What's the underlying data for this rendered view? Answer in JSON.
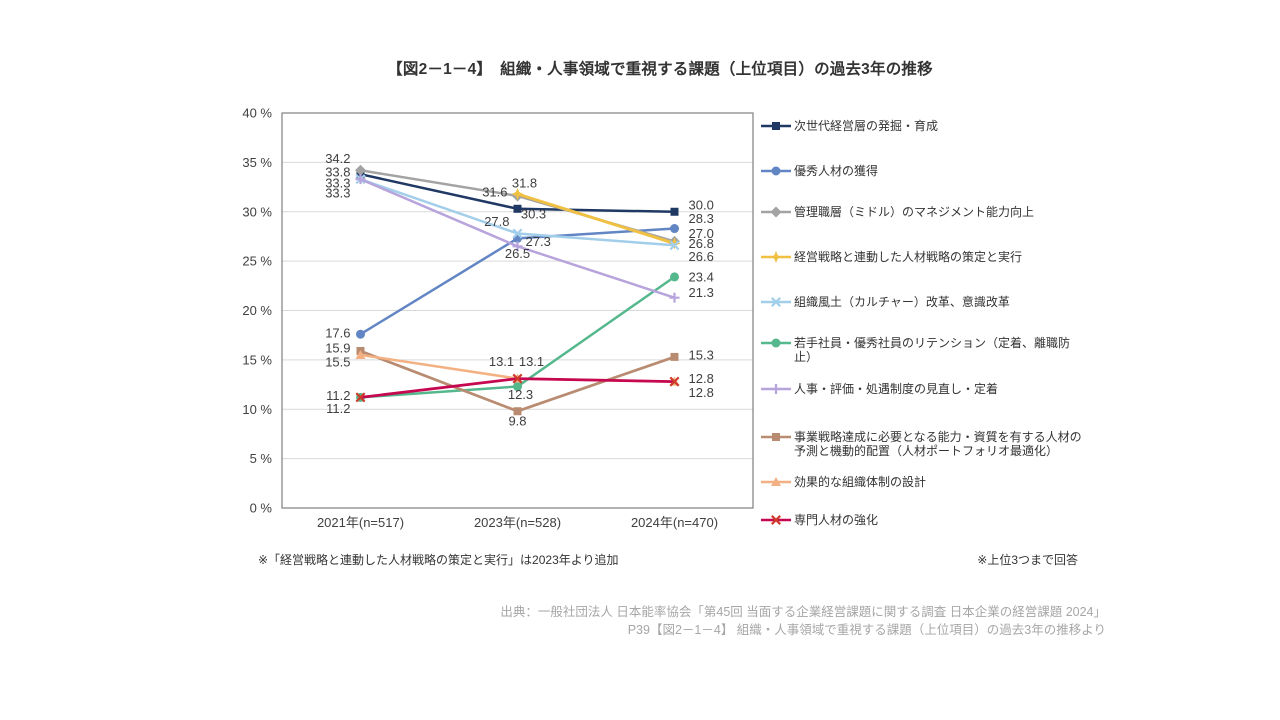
{
  "title": "【図2－1－4】　組織・人事領域で重視する課題（上位項目）の過去3年の推移",
  "footnotes": {
    "left": "※「経営戦略と連動した人材戦略の策定と実行」は2023年より追加",
    "right": "※上位3つまで回答"
  },
  "source": {
    "line1": "出典：一般社団法人 日本能率協会「第45回 当面する企業経営課題に関する調査 日本企業の経営課題 2024」",
    "line2": "P39【図2－1－4】 組織・人事領域で重視する課題（上位項目）の過去3年の推移より"
  },
  "chart_data": {
    "type": "line",
    "title": "組織・人事領域で重視する課題（上位項目）の過去3年の推移",
    "categories": [
      "2021年(n=517)",
      "2023年(n=528)",
      "2024年(n=470)"
    ],
    "ylim": [
      0,
      40
    ],
    "ytick_step": 5,
    "ytick_suffix": " %",
    "grid": true,
    "legend_position": "right",
    "axis_color": "#7f7f7f",
    "grid_color": "#d9d9d9",
    "label_color": "#3f3f3f",
    "series": [
      {
        "name": "次世代経営層の発掘・育成",
        "color": "#1F3864",
        "marker": "square",
        "width": 2.5,
        "values": [
          33.8,
          30.3,
          30.0
        ],
        "label_offsets": [
          [
            -10,
            -2,
            "end"
          ],
          [
            16,
            5,
            "middle"
          ],
          [
            14,
            -7,
            "start"
          ]
        ]
      },
      {
        "name": "優秀人材の獲得",
        "color": "#6285C4",
        "marker": "circle",
        "width": 2.5,
        "values": [
          17.6,
          27.3,
          28.3
        ],
        "label_offsets": [
          [
            -10,
            -1,
            "end"
          ],
          [
            8,
            3,
            "start"
          ],
          [
            14,
            -10,
            "start"
          ]
        ]
      },
      {
        "name": "管理職層（ミドル）のマネジメント能力向上",
        "color": "#A3A3A3",
        "marker": "diamond",
        "width": 2.5,
        "values": [
          34.2,
          31.6,
          27.0
        ],
        "label_offsets": [
          [
            -10,
            -12,
            "end"
          ],
          [
            -10,
            -4,
            "end"
          ],
          [
            14,
            -8,
            "start"
          ]
        ]
      },
      {
        "name": "経営戦略と連動した人材戦略の策定と実行",
        "color": "#EFC042",
        "marker": "star4",
        "width": 3,
        "values": [
          null,
          31.8,
          26.8
        ],
        "label_offsets": [
          null,
          [
            7,
            -11,
            "middle"
          ],
          [
            14,
            0,
            "start"
          ]
        ]
      },
      {
        "name": "組織風土（カルチャー）改革、意識改革",
        "color": "#A3CEEA",
        "marker": "x",
        "width": 2.5,
        "values": [
          33.3,
          27.8,
          26.6
        ],
        "label_offsets": [
          [
            -10,
            4,
            "end"
          ],
          [
            -8,
            -12,
            "end"
          ],
          [
            14,
            11,
            "start"
          ]
        ]
      },
      {
        "name": "若手社員・優秀社員のリテンション（定着、離職防止）",
        "color": "#55B78C",
        "marker": "circle",
        "width": 2.5,
        "values": [
          11.2,
          12.3,
          23.4
        ],
        "label_offsets": [
          [
            -10,
            11,
            "end"
          ],
          [
            3,
            8,
            "middle"
          ],
          [
            14,
            0,
            "start"
          ]
        ]
      },
      {
        "name": "人事・評価・処遇制度の見直し・定着",
        "color": "#B7A4DC",
        "marker": "plus",
        "width": 2.5,
        "values": [
          33.3,
          26.5,
          21.3
        ],
        "label_offsets": [
          [
            -10,
            14,
            "end"
          ],
          [
            0,
            7,
            "middle"
          ],
          [
            14,
            -5,
            "start"
          ]
        ]
      },
      {
        "name": "事業戦略達成に必要となる能力・資質を有する人材の予測と機動的配置（人材ポートフォリオ最適化）",
        "color": "#B98C72",
        "marker": "square",
        "width": 2.75,
        "values": [
          15.9,
          9.8,
          15.3
        ],
        "label_offsets": [
          [
            -10,
            -3,
            "end"
          ],
          [
            0,
            10,
            "middle"
          ],
          [
            14,
            -2,
            "start"
          ]
        ]
      },
      {
        "name": "効果的な組織体制の設計",
        "color": "#F3B183",
        "marker": "triangle",
        "width": 2.5,
        "values": [
          15.5,
          13.1,
          12.8
        ],
        "label_offsets": [
          [
            -10,
            7,
            "end"
          ],
          [
            14,
            -17,
            "middle"
          ],
          [
            14,
            11,
            "start"
          ]
        ]
      },
      {
        "name": "専門人材の強化",
        "color": "#C50850",
        "marker": "x",
        "marker_color": "#CF3B2B",
        "width": 2.75,
        "values": [
          11.2,
          13.1,
          12.8
        ],
        "label_offsets": [
          [
            -10,
            -2,
            "end"
          ],
          [
            -16,
            -17,
            "middle"
          ],
          [
            14,
            -3,
            "start"
          ]
        ]
      }
    ]
  }
}
